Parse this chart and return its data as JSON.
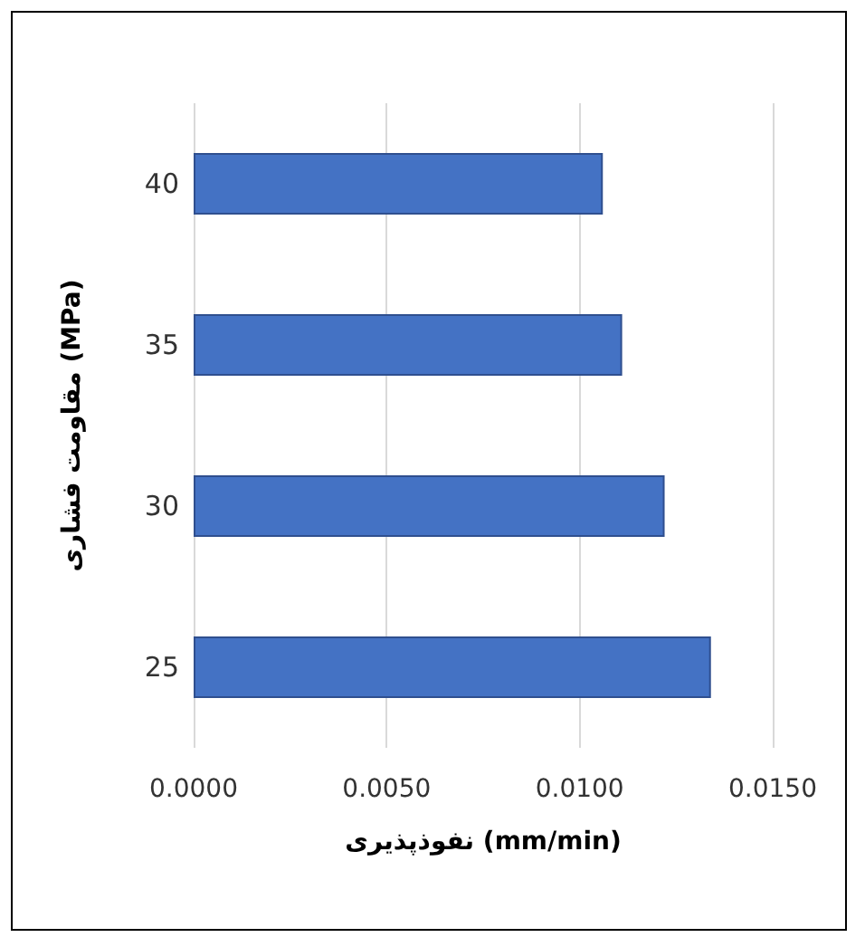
{
  "chart_data": {
    "type": "bar",
    "orientation": "horizontal",
    "categories": [
      "40",
      "35",
      "30",
      "25"
    ],
    "values": [
      0.0106,
      0.0111,
      0.0122,
      0.0134
    ],
    "color": "#4472c4",
    "xlim": [
      0,
      0.015
    ],
    "xticks": [
      {
        "value": 0,
        "label": "0.0000"
      },
      {
        "value": 0.005,
        "label": "0.0050"
      },
      {
        "value": 0.01,
        "label": "0.0100"
      },
      {
        "value": 0.015,
        "label": "0.0150"
      }
    ],
    "xlabel": "نفوذپذیری (mm/min)",
    "ylabel": "مقاومت فشاری (MPa)",
    "grid": "x"
  }
}
